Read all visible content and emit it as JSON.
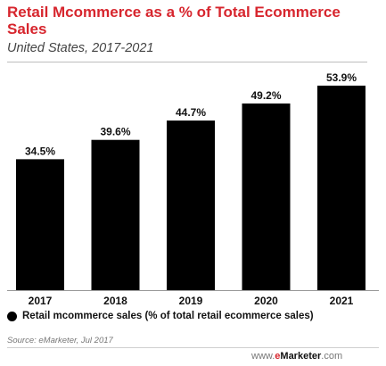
{
  "header": {
    "title": "Retail Mcommerce as a % of Total Ecommerce Sales",
    "subtitle": "United States, 2017-2021"
  },
  "legend": {
    "label": "Retail mcommerce sales (% of total retail ecommerce sales)"
  },
  "source": "Source: eMarketer, Jul 2017",
  "footer": {
    "prefix": "www.",
    "brand_e": "e",
    "brand_rest": "Marketer",
    "suffix": ".com"
  },
  "chart_data": {
    "type": "bar",
    "categories": [
      "2017",
      "2018",
      "2019",
      "2020",
      "2021"
    ],
    "values": [
      34.5,
      39.6,
      44.7,
      49.2,
      53.9
    ],
    "data_labels": [
      "34.5%",
      "39.6%",
      "44.7%",
      "49.2%",
      "53.9%"
    ],
    "title": "Retail Mcommerce as a % of Total Ecommerce Sales",
    "subtitle": "United States, 2017-2021",
    "series": [
      {
        "name": "Retail mcommerce sales (% of total retail ecommerce sales)",
        "values": [
          34.5,
          39.6,
          44.7,
          49.2,
          53.9
        ]
      }
    ],
    "ylim": [
      0,
      60
    ],
    "grid": false,
    "legend_position": "bottom-left",
    "bar_color": "#000000",
    "title_color": "#d7262e"
  }
}
